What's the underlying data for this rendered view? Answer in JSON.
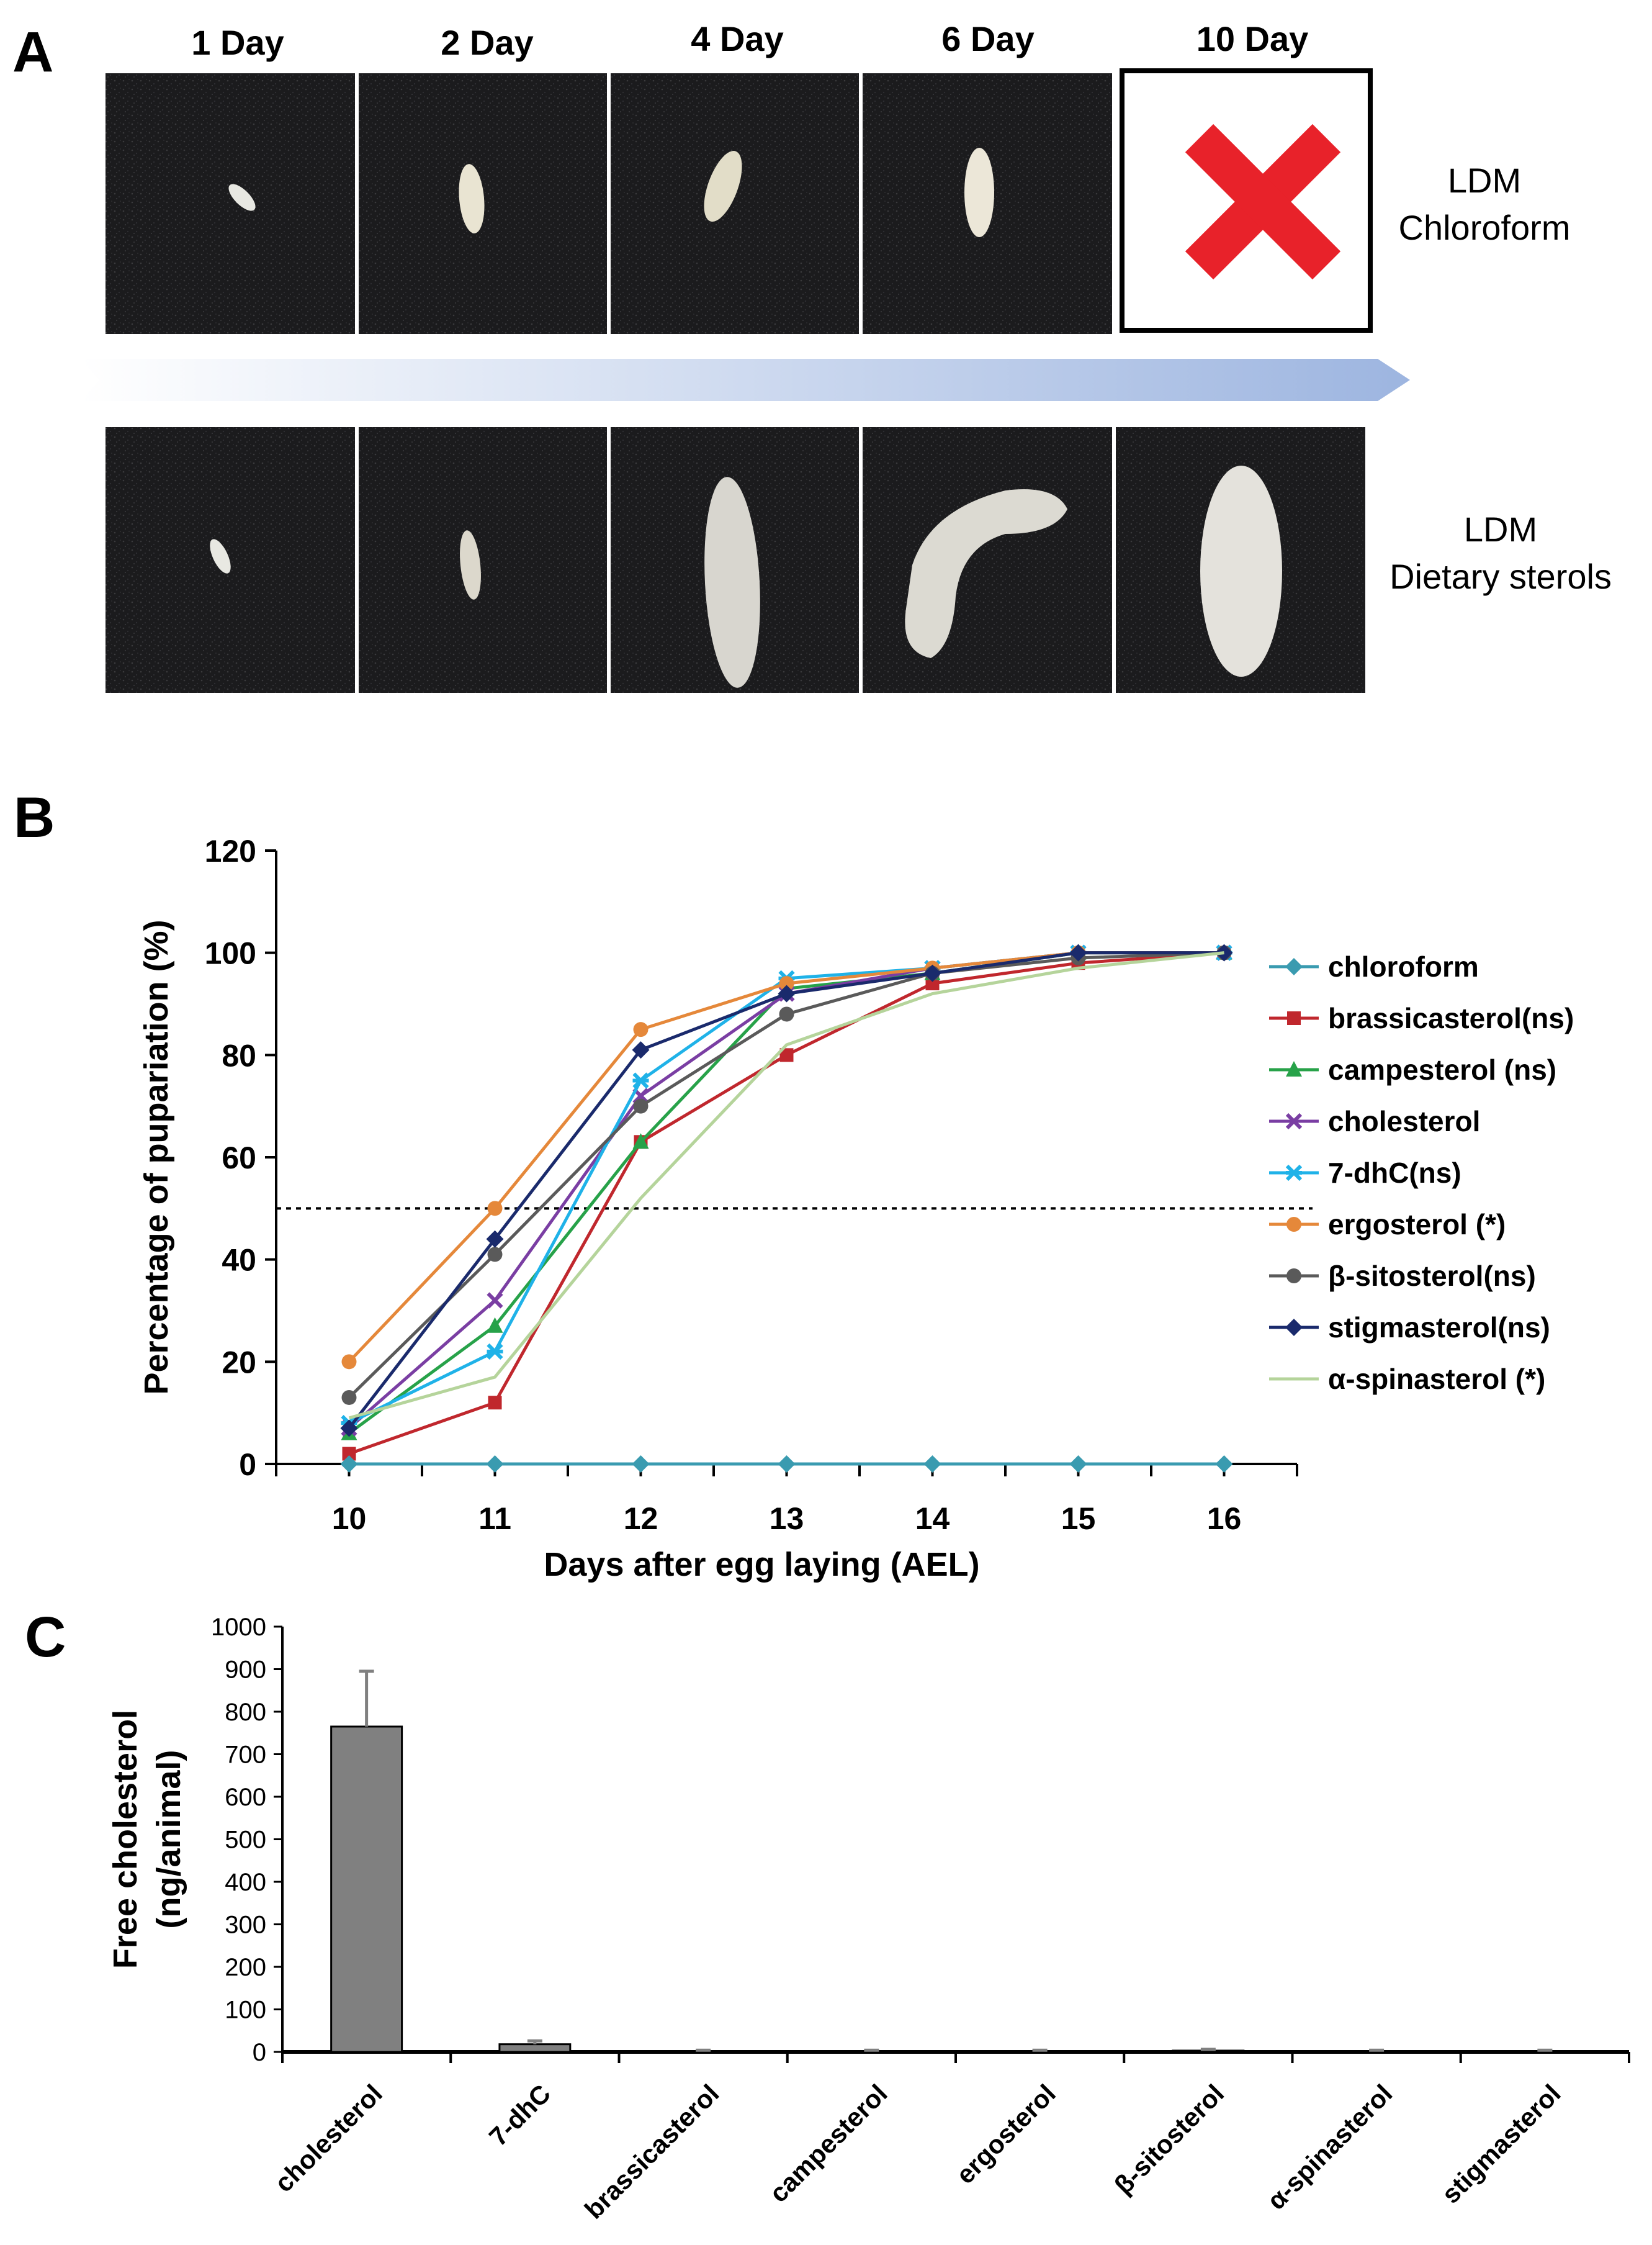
{
  "panel_a": {
    "letter": "A",
    "days": [
      "1 Day",
      "2 Day",
      "4 Day",
      "6 Day",
      "10 Day"
    ],
    "rows": [
      {
        "line1": "LDM",
        "line2": "Chloroform"
      },
      {
        "line1": "LDM",
        "line2": "Dietary sterols"
      }
    ],
    "colors": {
      "cross": "#e8222a",
      "arrow": "#9db5e0"
    }
  },
  "panel_b": {
    "letter": "B"
  },
  "panel_c": {
    "letter": "C"
  },
  "chart_data": [
    {
      "type": "line",
      "title": "",
      "xlabel": "Days after egg laying (AEL)",
      "ylabel": "Percentage of pupariation (%)",
      "x": [
        10,
        11,
        12,
        13,
        14,
        15,
        16
      ],
      "xlim": [
        9.5,
        16.5
      ],
      "ylim": [
        0,
        120
      ],
      "yticks": [
        0,
        20,
        40,
        60,
        80,
        100,
        120
      ],
      "reference_line": 50,
      "legend_position": "right",
      "series": [
        {
          "name": "chloroform",
          "sig": "",
          "color": "#3a9bb0",
          "marker": "diamond",
          "values": [
            0,
            0,
            0,
            0,
            0,
            0,
            0
          ]
        },
        {
          "name": "brassicasterol",
          "sig": "(ns)",
          "color": "#c0272d",
          "marker": "square",
          "values": [
            2,
            12,
            63,
            80,
            94,
            98,
            100
          ]
        },
        {
          "name": "campesterol",
          "sig": " (ns)",
          "color": "#27a249",
          "marker": "triangle",
          "values": [
            6,
            27,
            63,
            93,
            96,
            100,
            100
          ]
        },
        {
          "name": "cholesterol",
          "sig": "",
          "color": "#7a3ea3",
          "marker": "x",
          "values": [
            7,
            32,
            72,
            92,
            97,
            100,
            100
          ]
        },
        {
          "name": "7-dhC",
          "sig": "(ns)",
          "color": "#1fb2e8",
          "marker": "star",
          "values": [
            8,
            22,
            75,
            95,
            97,
            100,
            100
          ]
        },
        {
          "name": "ergosterol",
          "sig": " (*)",
          "color": "#e5883a",
          "marker": "circle",
          "values": [
            20,
            50,
            85,
            94,
            97,
            100,
            100
          ]
        },
        {
          "name": "β-sitosterol",
          "sig": "(ns)",
          "color": "#5a5a5a",
          "marker": "circle",
          "values": [
            13,
            41,
            70,
            88,
            96,
            99,
            100
          ]
        },
        {
          "name": "stigmasterol",
          "sig": "(ns)",
          "color": "#1a2a6c",
          "marker": "diamond",
          "values": [
            7,
            44,
            81,
            92,
            96,
            100,
            100
          ]
        },
        {
          "name": "α-spinasterol",
          "sig": " (*)",
          "color": "#b5d49b",
          "marker": "none",
          "values": [
            9,
            17,
            52,
            82,
            92,
            97,
            100
          ]
        }
      ]
    },
    {
      "type": "bar",
      "title": "",
      "xlabel": "",
      "ylabel_line1": "Free cholesterol",
      "ylabel_line2": "(ng/animal)",
      "ylim": [
        0,
        1000
      ],
      "yticks": [
        0,
        100,
        200,
        300,
        400,
        500,
        600,
        700,
        800,
        900,
        1000
      ],
      "bar_color": "#808080",
      "categories": [
        "cholesterol",
        "7-dhC",
        "brassicasterol",
        "campesterol",
        "ergosterol",
        "β-sitosterol",
        "α-spinasterol",
        "stigmasterol"
      ],
      "values": [
        765,
        18,
        2,
        2,
        2,
        3,
        2,
        2
      ],
      "errors": [
        130,
        8,
        2,
        2,
        2,
        3,
        2,
        2
      ]
    }
  ]
}
